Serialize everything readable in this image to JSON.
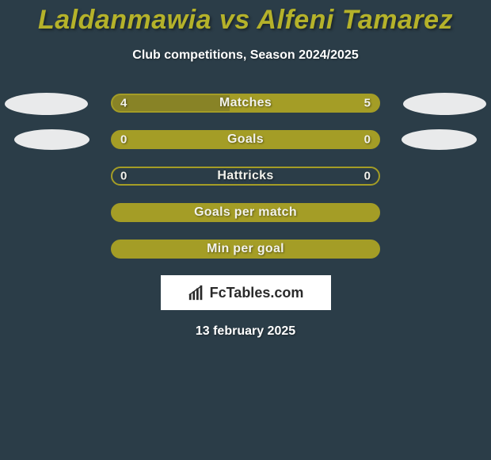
{
  "title_color": "#b5b22a",
  "title_text": "Laldanmawia vs Alfeni Tamarez",
  "subtitle": "Club competitions, Season 2024/2025",
  "background_color": "#2b3d48",
  "text_color": "#ffffff",
  "oval_color": "#e9eaeb",
  "logo_bg": "#ffffff",
  "logo_text": "FcTables.com",
  "logo_text_color": "#2a2a2a",
  "date_text": "13 february 2025",
  "rows": [
    {
      "label": "Matches",
      "left_val": "4",
      "right_val": "5",
      "border_color": "#a49d26",
      "bg_color": "#a49d26",
      "left_fill_color": "#888326",
      "left_fill_pct": 44,
      "right_fill_color": "#a49d26",
      "right_fill_pct": 56,
      "show_ovals": true
    },
    {
      "label": "Goals",
      "left_val": "0",
      "right_val": "0",
      "border_color": "#a49d26",
      "bg_color": "#a49d26",
      "left_fill_color": "#a49d26",
      "left_fill_pct": 50,
      "right_fill_color": "#a49d26",
      "right_fill_pct": 50,
      "show_ovals": true
    },
    {
      "label": "Hattricks",
      "left_val": "0",
      "right_val": "0",
      "border_color": "#a49d26",
      "bg_color": "#2b3d48",
      "left_fill_color": "transparent",
      "left_fill_pct": 0,
      "right_fill_color": "transparent",
      "right_fill_pct": 0,
      "show_ovals": false
    },
    {
      "label": "Goals per match",
      "left_val": "",
      "right_val": "",
      "border_color": "#a49d26",
      "bg_color": "#a49d26",
      "left_fill_color": "#a49d26",
      "left_fill_pct": 50,
      "right_fill_color": "#a49d26",
      "right_fill_pct": 50,
      "show_ovals": false
    },
    {
      "label": "Min per goal",
      "left_val": "",
      "right_val": "",
      "border_color": "#a49d26",
      "bg_color": "#a49d26",
      "left_fill_color": "#a49d26",
      "left_fill_pct": 50,
      "right_fill_color": "#a49d26",
      "right_fill_pct": 50,
      "show_ovals": false
    }
  ]
}
